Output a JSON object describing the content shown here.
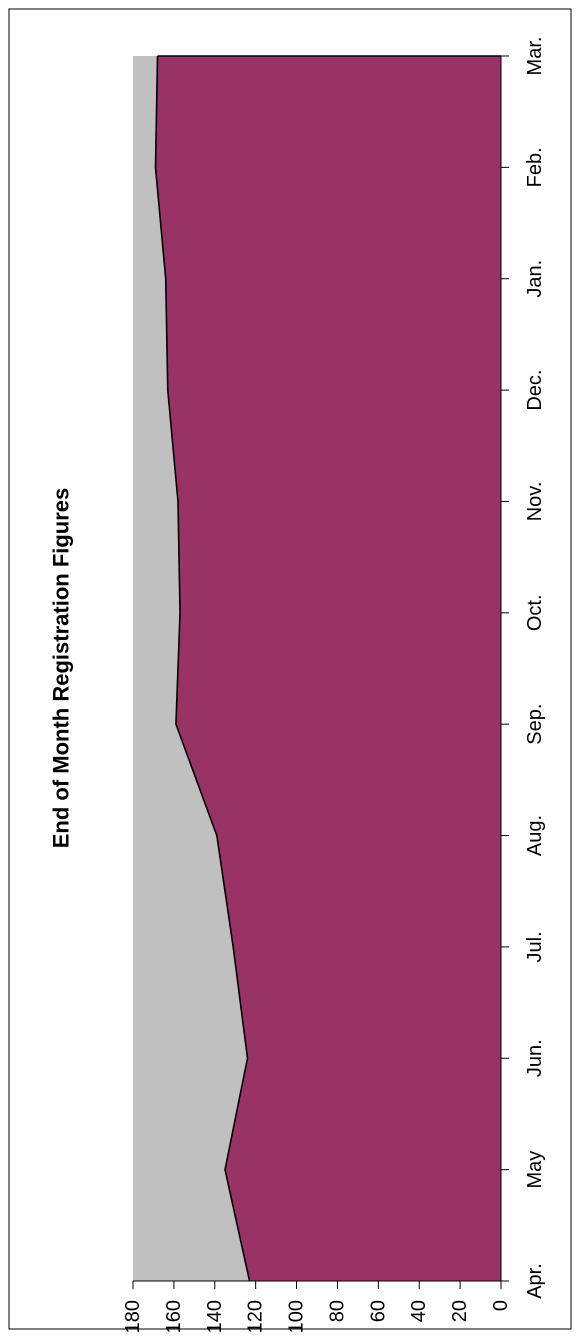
{
  "chart_data": {
    "type": "area",
    "title": "End of Month Registration Figures",
    "xlabel": "",
    "ylabel": "",
    "orientation": "rotated-90-ccw",
    "categories": [
      "Apr.",
      "May",
      "Jun.",
      "Jul.",
      "Aug.",
      "Sep.",
      "Oct.",
      "Nov.",
      "Dec.",
      "Jan.",
      "Feb.",
      "Mar."
    ],
    "series": [
      {
        "values": [
          123,
          135,
          124,
          131,
          139,
          159,
          157,
          158,
          163,
          164,
          169,
          168
        ],
        "color": "#993366"
      }
    ],
    "ylim": [
      0,
      180
    ],
    "yticks": [
      0,
      20,
      40,
      60,
      80,
      100,
      120,
      140,
      160,
      180
    ],
    "plot_background": "#c0c0c0",
    "grid": false,
    "legend": "none"
  }
}
